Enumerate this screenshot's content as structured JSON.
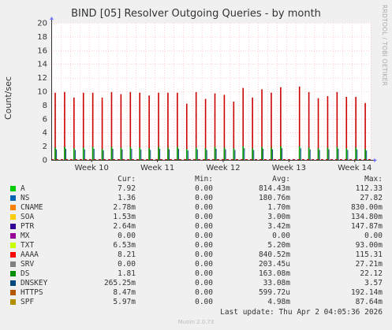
{
  "chart_data": {
    "type": "bar",
    "title": "BIND [05] Resolver Outgoing Queries - by month",
    "ylabel": "Count/sec",
    "ylim": [
      0,
      20
    ],
    "yticks": [
      0,
      2,
      4,
      6,
      8,
      10,
      12,
      14,
      16,
      18,
      20
    ],
    "grid": true,
    "week_ticks": [
      "Week 10",
      "Week 11",
      "Week 12",
      "Week 13",
      "Week 14"
    ],
    "series_colors": {
      "A": "#00cc00",
      "NS": "#0066b3",
      "CNAME": "#ff8000",
      "SOA": "#ffcc00",
      "PTR": "#330099",
      "MX": "#990099",
      "TXT": "#ccff00",
      "AAAA": "#ff0000",
      "SRV": "#808080",
      "DS": "#008f00",
      "DNSKEY": "#00487d",
      "HTTPS": "#b35a00",
      "SPF": "#b38f00"
    },
    "spikes": [
      {
        "day": 0,
        "aaaa": 9.8,
        "a": 1.8
      },
      {
        "day": 1,
        "aaaa": 9.9,
        "a": 1.9
      },
      {
        "day": 2,
        "aaaa": 9.1,
        "a": 1.7
      },
      {
        "day": 3,
        "aaaa": 9.8,
        "a": 1.8
      },
      {
        "day": 4,
        "aaaa": 9.8,
        "a": 1.9
      },
      {
        "day": 5,
        "aaaa": 9.1,
        "a": 1.6
      },
      {
        "day": 6,
        "aaaa": 9.9,
        "a": 1.9
      },
      {
        "day": 7,
        "aaaa": 9.6,
        "a": 1.8
      },
      {
        "day": 8,
        "aaaa": 9.9,
        "a": 1.9
      },
      {
        "day": 9,
        "aaaa": 9.8,
        "a": 1.8
      },
      {
        "day": 10,
        "aaaa": 9.4,
        "a": 1.7
      },
      {
        "day": 11,
        "aaaa": 9.8,
        "a": 1.9
      },
      {
        "day": 12,
        "aaaa": 9.8,
        "a": 1.8
      },
      {
        "day": 13,
        "aaaa": 9.8,
        "a": 1.9
      },
      {
        "day": 14,
        "aaaa": 8.2,
        "a": 1.6
      },
      {
        "day": 15,
        "aaaa": 9.9,
        "a": 1.8
      },
      {
        "day": 16,
        "aaaa": 8.9,
        "a": 1.7
      },
      {
        "day": 17,
        "aaaa": 9.7,
        "a": 1.9
      },
      {
        "day": 18,
        "aaaa": 9.5,
        "a": 1.8
      },
      {
        "day": 19,
        "aaaa": 8.5,
        "a": 1.7
      },
      {
        "day": 20,
        "aaaa": 10.5,
        "a": 2.0
      },
      {
        "day": 21,
        "aaaa": 9.1,
        "a": 1.7
      },
      {
        "day": 22,
        "aaaa": 10.3,
        "a": 1.9
      },
      {
        "day": 23,
        "aaaa": 9.8,
        "a": 1.8
      },
      {
        "day": 24,
        "aaaa": 10.6,
        "a": 2.0
      },
      {
        "day": 26,
        "aaaa": 10.7,
        "a": 2.0
      },
      {
        "day": 27,
        "aaaa": 9.9,
        "a": 1.8
      },
      {
        "day": 28,
        "aaaa": 9.0,
        "a": 1.7
      },
      {
        "day": 29,
        "aaaa": 9.3,
        "a": 1.8
      },
      {
        "day": 30,
        "aaaa": 9.9,
        "a": 1.9
      },
      {
        "day": 31,
        "aaaa": 9.2,
        "a": 1.7
      },
      {
        "day": 32,
        "aaaa": 9.2,
        "a": 1.8
      },
      {
        "day": 33,
        "aaaa": 8.3,
        "a": 1.6
      }
    ],
    "x_range_days": [
      0,
      34
    ],
    "week_tick_days": [
      4.3,
      11.3,
      18.3,
      25.3,
      32.3
    ]
  },
  "watermark": "RRDTOOL / TOBI OETIKER",
  "legend": {
    "headers": {
      "cur": "Cur:",
      "min": "Min:",
      "avg": "Avg:",
      "max": "Max:"
    },
    "rows": [
      {
        "name": "A",
        "color": "#00cc00",
        "cur": "7.92",
        "min": "0.00",
        "avg": "814.43m",
        "max": "112.33"
      },
      {
        "name": "NS",
        "color": "#0066b3",
        "cur": "1.36",
        "min": "0.00",
        "avg": "180.76m",
        "max": "27.82"
      },
      {
        "name": "CNAME",
        "color": "#ff8000",
        "cur": "2.78m",
        "min": "0.00",
        "avg": "1.70m",
        "max": "830.00m"
      },
      {
        "name": "SOA",
        "color": "#ffcc00",
        "cur": "1.53m",
        "min": "0.00",
        "avg": "3.00m",
        "max": "134.80m"
      },
      {
        "name": "PTR",
        "color": "#330099",
        "cur": "2.64m",
        "min": "0.00",
        "avg": "3.42m",
        "max": "147.87m"
      },
      {
        "name": "MX",
        "color": "#990099",
        "cur": "0.00",
        "min": "0.00",
        "avg": "0.00",
        "max": "0.00"
      },
      {
        "name": "TXT",
        "color": "#ccff00",
        "cur": "6.53m",
        "min": "0.00",
        "avg": "5.20m",
        "max": "93.00m"
      },
      {
        "name": "AAAA",
        "color": "#ff0000",
        "cur": "8.21",
        "min": "0.00",
        "avg": "840.52m",
        "max": "115.31"
      },
      {
        "name": "SRV",
        "color": "#808080",
        "cur": "0.00",
        "min": "0.00",
        "avg": "203.45u",
        "max": "27.21m"
      },
      {
        "name": "DS",
        "color": "#008f00",
        "cur": "1.81",
        "min": "0.00",
        "avg": "163.08m",
        "max": "22.12"
      },
      {
        "name": "DNSKEY",
        "color": "#00487d",
        "cur": "265.25m",
        "min": "0.00",
        "avg": "33.08m",
        "max": "3.57"
      },
      {
        "name": "HTTPS",
        "color": "#b35a00",
        "cur": "8.47m",
        "min": "0.00",
        "avg": "599.72u",
        "max": "192.14m"
      },
      {
        "name": "SPF",
        "color": "#b38f00",
        "cur": "5.97m",
        "min": "0.00",
        "avg": "4.98m",
        "max": "87.64m"
      }
    ]
  },
  "last_update": "Last update: Thu Apr  2 04:05:36 2026",
  "footer": "Munin 2.0.73"
}
